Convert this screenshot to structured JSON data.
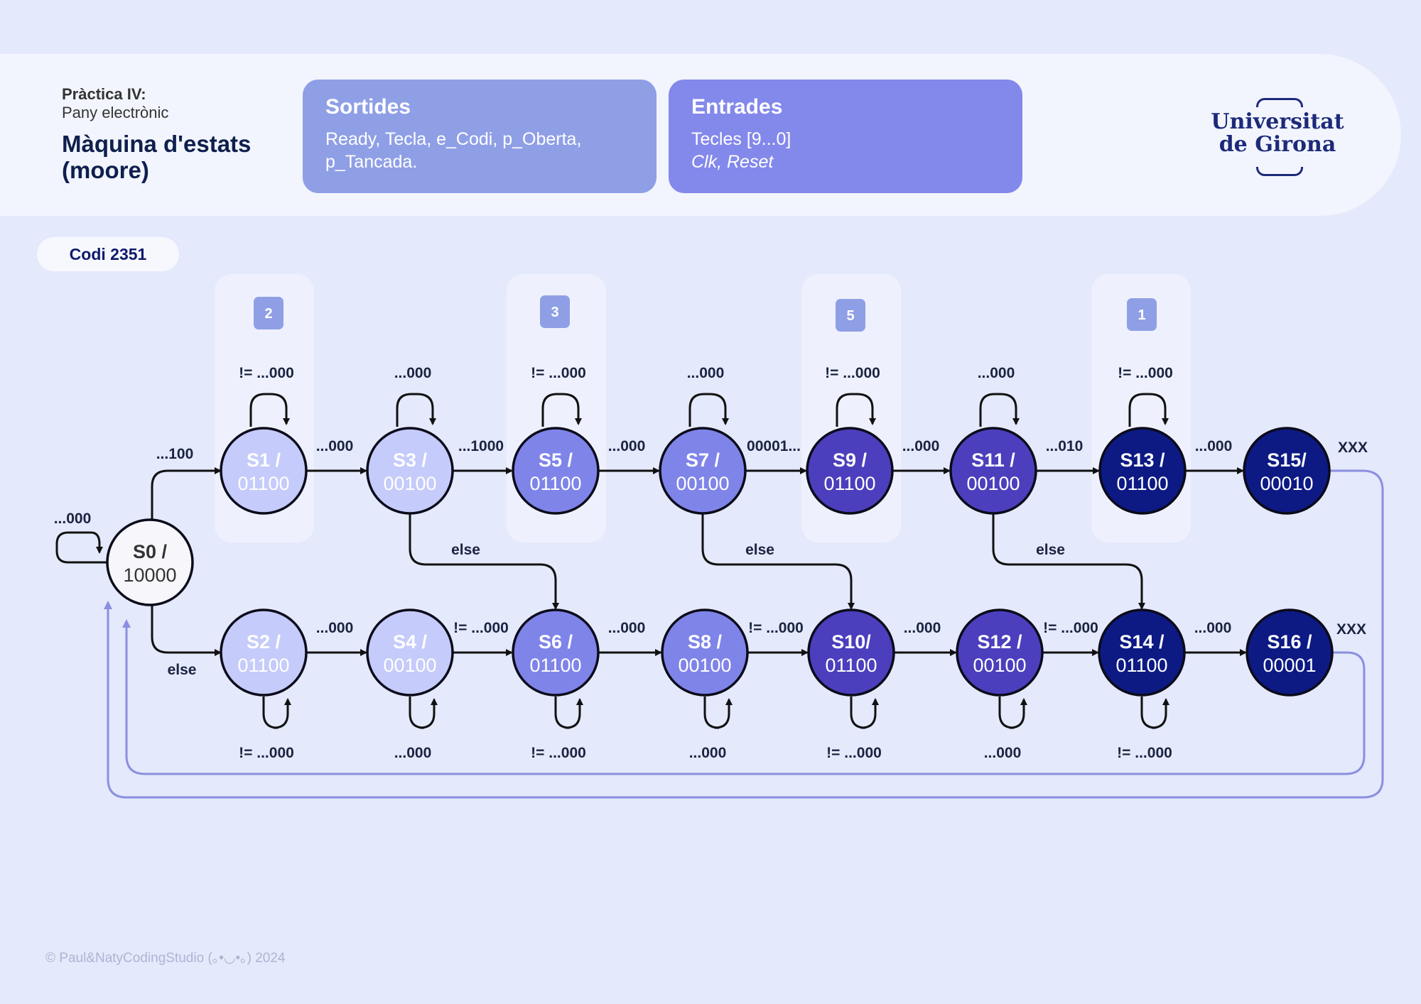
{
  "header": {
    "practice": "Pràctica IV:",
    "subtitle": "Pany electrònic",
    "title": "Màquina d'estats (moore)"
  },
  "outputs_card": {
    "title": "Sortides",
    "line1": "Ready, Tecla, e_Codi, p_Oberta,",
    "line2": "p_Tancada."
  },
  "inputs_card": {
    "title": "Entrades",
    "line1": "Tecles [9...0]",
    "line2": "Clk, Reset"
  },
  "logo": {
    "line1": "Universitat",
    "line2": "de Girona"
  },
  "code_badge": "Codi  2351",
  "footer": "© Paul&NatyCodingStudio (｡•◡•｡) 2024",
  "colors": {
    "background": "#e4e9fb",
    "card_out": "#8f9fe6",
    "card_in": "#8388eb",
    "arrow": "#111111",
    "reset_line": "#8a8fe0"
  },
  "digits": [
    "2",
    "3",
    "5",
    "1"
  ],
  "states": [
    {
      "id": "S0",
      "name": "S0 /",
      "out": "10000"
    },
    {
      "id": "S1",
      "name": "S1 /",
      "out": "01100"
    },
    {
      "id": "S2",
      "name": "S2 /",
      "out": "01100"
    },
    {
      "id": "S3",
      "name": "S3 /",
      "out": "00100"
    },
    {
      "id": "S4",
      "name": "S4 /",
      "out": "00100"
    },
    {
      "id": "S5",
      "name": "S5 /",
      "out": "01100"
    },
    {
      "id": "S6",
      "name": "S6 /",
      "out": "01100"
    },
    {
      "id": "S7",
      "name": "S7 /",
      "out": "00100"
    },
    {
      "id": "S8",
      "name": "S8 /",
      "out": "00100"
    },
    {
      "id": "S9",
      "name": "S9 /",
      "out": "01100"
    },
    {
      "id": "S10",
      "name": "S10/",
      "out": "01100"
    },
    {
      "id": "S11",
      "name": "S11 /",
      "out": "00100"
    },
    {
      "id": "S12",
      "name": "S12 /",
      "out": "00100"
    },
    {
      "id": "S13",
      "name": "S13 /",
      "out": "01100"
    },
    {
      "id": "S14",
      "name": "S14 /",
      "out": "01100"
    },
    {
      "id": "S15",
      "name": "S15/",
      "out": "00010"
    },
    {
      "id": "S16",
      "name": "S16 /",
      "out": "00001"
    }
  ],
  "transitions": [
    {
      "from": "S0",
      "to": "S0",
      "label": "...000"
    },
    {
      "from": "S0",
      "to": "S1",
      "label": "...100"
    },
    {
      "from": "S0",
      "to": "S2",
      "label": "else"
    },
    {
      "from": "S1",
      "to": "S1",
      "label": "!= ...000"
    },
    {
      "from": "S1",
      "to": "S3",
      "label": "...000"
    },
    {
      "from": "S2",
      "to": "S2",
      "label": "!= ...000"
    },
    {
      "from": "S2",
      "to": "S4",
      "label": "...000"
    },
    {
      "from": "S3",
      "to": "S3",
      "label": "...000"
    },
    {
      "from": "S3",
      "to": "S5",
      "label": "...1000"
    },
    {
      "from": "S3",
      "to": "S6",
      "label": "else"
    },
    {
      "from": "S4",
      "to": "S4",
      "label": "...000"
    },
    {
      "from": "S4",
      "to": "S6",
      "label": "!= ...000"
    },
    {
      "from": "S5",
      "to": "S5",
      "label": "!= ...000"
    },
    {
      "from": "S5",
      "to": "S7",
      "label": "...000"
    },
    {
      "from": "S6",
      "to": "S6",
      "label": "!= ...000"
    },
    {
      "from": "S6",
      "to": "S8",
      "label": "...000"
    },
    {
      "from": "S7",
      "to": "S7",
      "label": "...000"
    },
    {
      "from": "S7",
      "to": "S9",
      "label": "00001..."
    },
    {
      "from": "S7",
      "to": "S10",
      "label": "else"
    },
    {
      "from": "S8",
      "to": "S8",
      "label": "...000"
    },
    {
      "from": "S8",
      "to": "S10",
      "label": "!= ...000"
    },
    {
      "from": "S9",
      "to": "S9",
      "label": "!= ...000"
    },
    {
      "from": "S9",
      "to": "S11",
      "label": "...000"
    },
    {
      "from": "S10",
      "to": "S10",
      "label": "!= ...000"
    },
    {
      "from": "S10",
      "to": "S12",
      "label": "...000"
    },
    {
      "from": "S11",
      "to": "S11",
      "label": "...000"
    },
    {
      "from": "S11",
      "to": "S13",
      "label": "...010"
    },
    {
      "from": "S11",
      "to": "S14",
      "label": "else"
    },
    {
      "from": "S12",
      "to": "S12",
      "label": "...000"
    },
    {
      "from": "S12",
      "to": "S14",
      "label": "!= ...000"
    },
    {
      "from": "S13",
      "to": "S13",
      "label": "!= ...000"
    },
    {
      "from": "S13",
      "to": "S15",
      "label": "...000"
    },
    {
      "from": "S14",
      "to": "S14",
      "label": "!= ...000"
    },
    {
      "from": "S14",
      "to": "S16",
      "label": "...000"
    },
    {
      "from": "S15",
      "to": "S0",
      "label": "XXX"
    },
    {
      "from": "S16",
      "to": "S0",
      "label": "XXX"
    }
  ]
}
